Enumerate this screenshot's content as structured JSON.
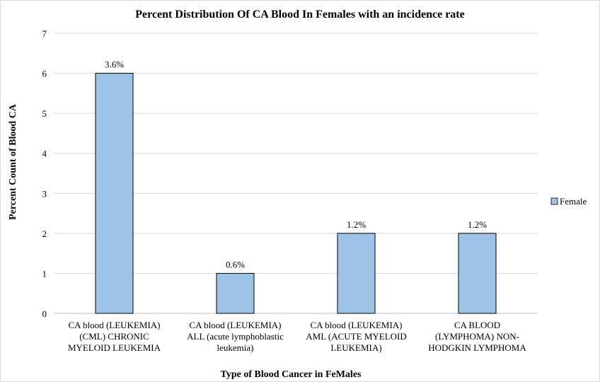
{
  "chart_data": {
    "type": "bar",
    "title": "Percent Distribution Of CA Blood In Females with  an incidence rate",
    "xlabel": "Type of Blood Cancer in FeMales",
    "ylabel": "Percent Count of Blood CA",
    "ylim": [
      0,
      7
    ],
    "yticks": [
      "0",
      "1",
      "2",
      "3",
      "4",
      "5",
      "6",
      "7"
    ],
    "grid": true,
    "legend_position": "right",
    "categories": [
      [
        "CA blood (LEUKEMIA)",
        "(CML) CHRONIC",
        "MYELOID  LEUKEMIA"
      ],
      [
        "CA blood (LEUKEMIA)",
        "ALL (acute lymphoblastic",
        "leukemia)"
      ],
      [
        "CA blood (LEUKEMIA)",
        "AML (ACUTE MYELOID",
        "LEUKEMIA)"
      ],
      [
        "CA BLOOD",
        "(LYMPHOMA) NON-",
        "HODGKIN LYMPHOMA"
      ]
    ],
    "series": [
      {
        "name": "Female",
        "color": "#9dc3e6",
        "values": [
          6,
          1,
          2,
          2
        ],
        "data_labels": [
          "3.6%",
          "0.6%",
          "1.2%",
          "1.2%"
        ]
      }
    ]
  }
}
